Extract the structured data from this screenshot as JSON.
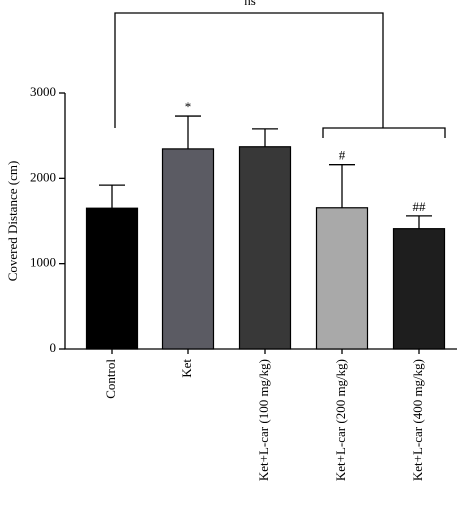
{
  "chart_data": {
    "type": "bar",
    "y_label": "Covered Distance (cm)",
    "categories": [
      "Control",
      "Ket",
      "Ket+L-car (100 mg/kg)",
      "Ket+L-car (200 mg/kg)",
      "Ket+L-car (400 mg/kg)"
    ],
    "values": [
      1650,
      2345,
      2370,
      1655,
      1410
    ],
    "errors": [
      270,
      385,
      210,
      505,
      150
    ],
    "colors": [
      "#000000",
      "#5b5b63",
      "#383838",
      "#a9a9a9",
      "#1e1e1e"
    ],
    "markers": [
      null,
      "*",
      null,
      "#",
      "##"
    ],
    "comparison_label": "ns",
    "ylim": [
      0,
      3000
    ],
    "yticks": [
      0,
      1000,
      2000,
      3000
    ]
  }
}
